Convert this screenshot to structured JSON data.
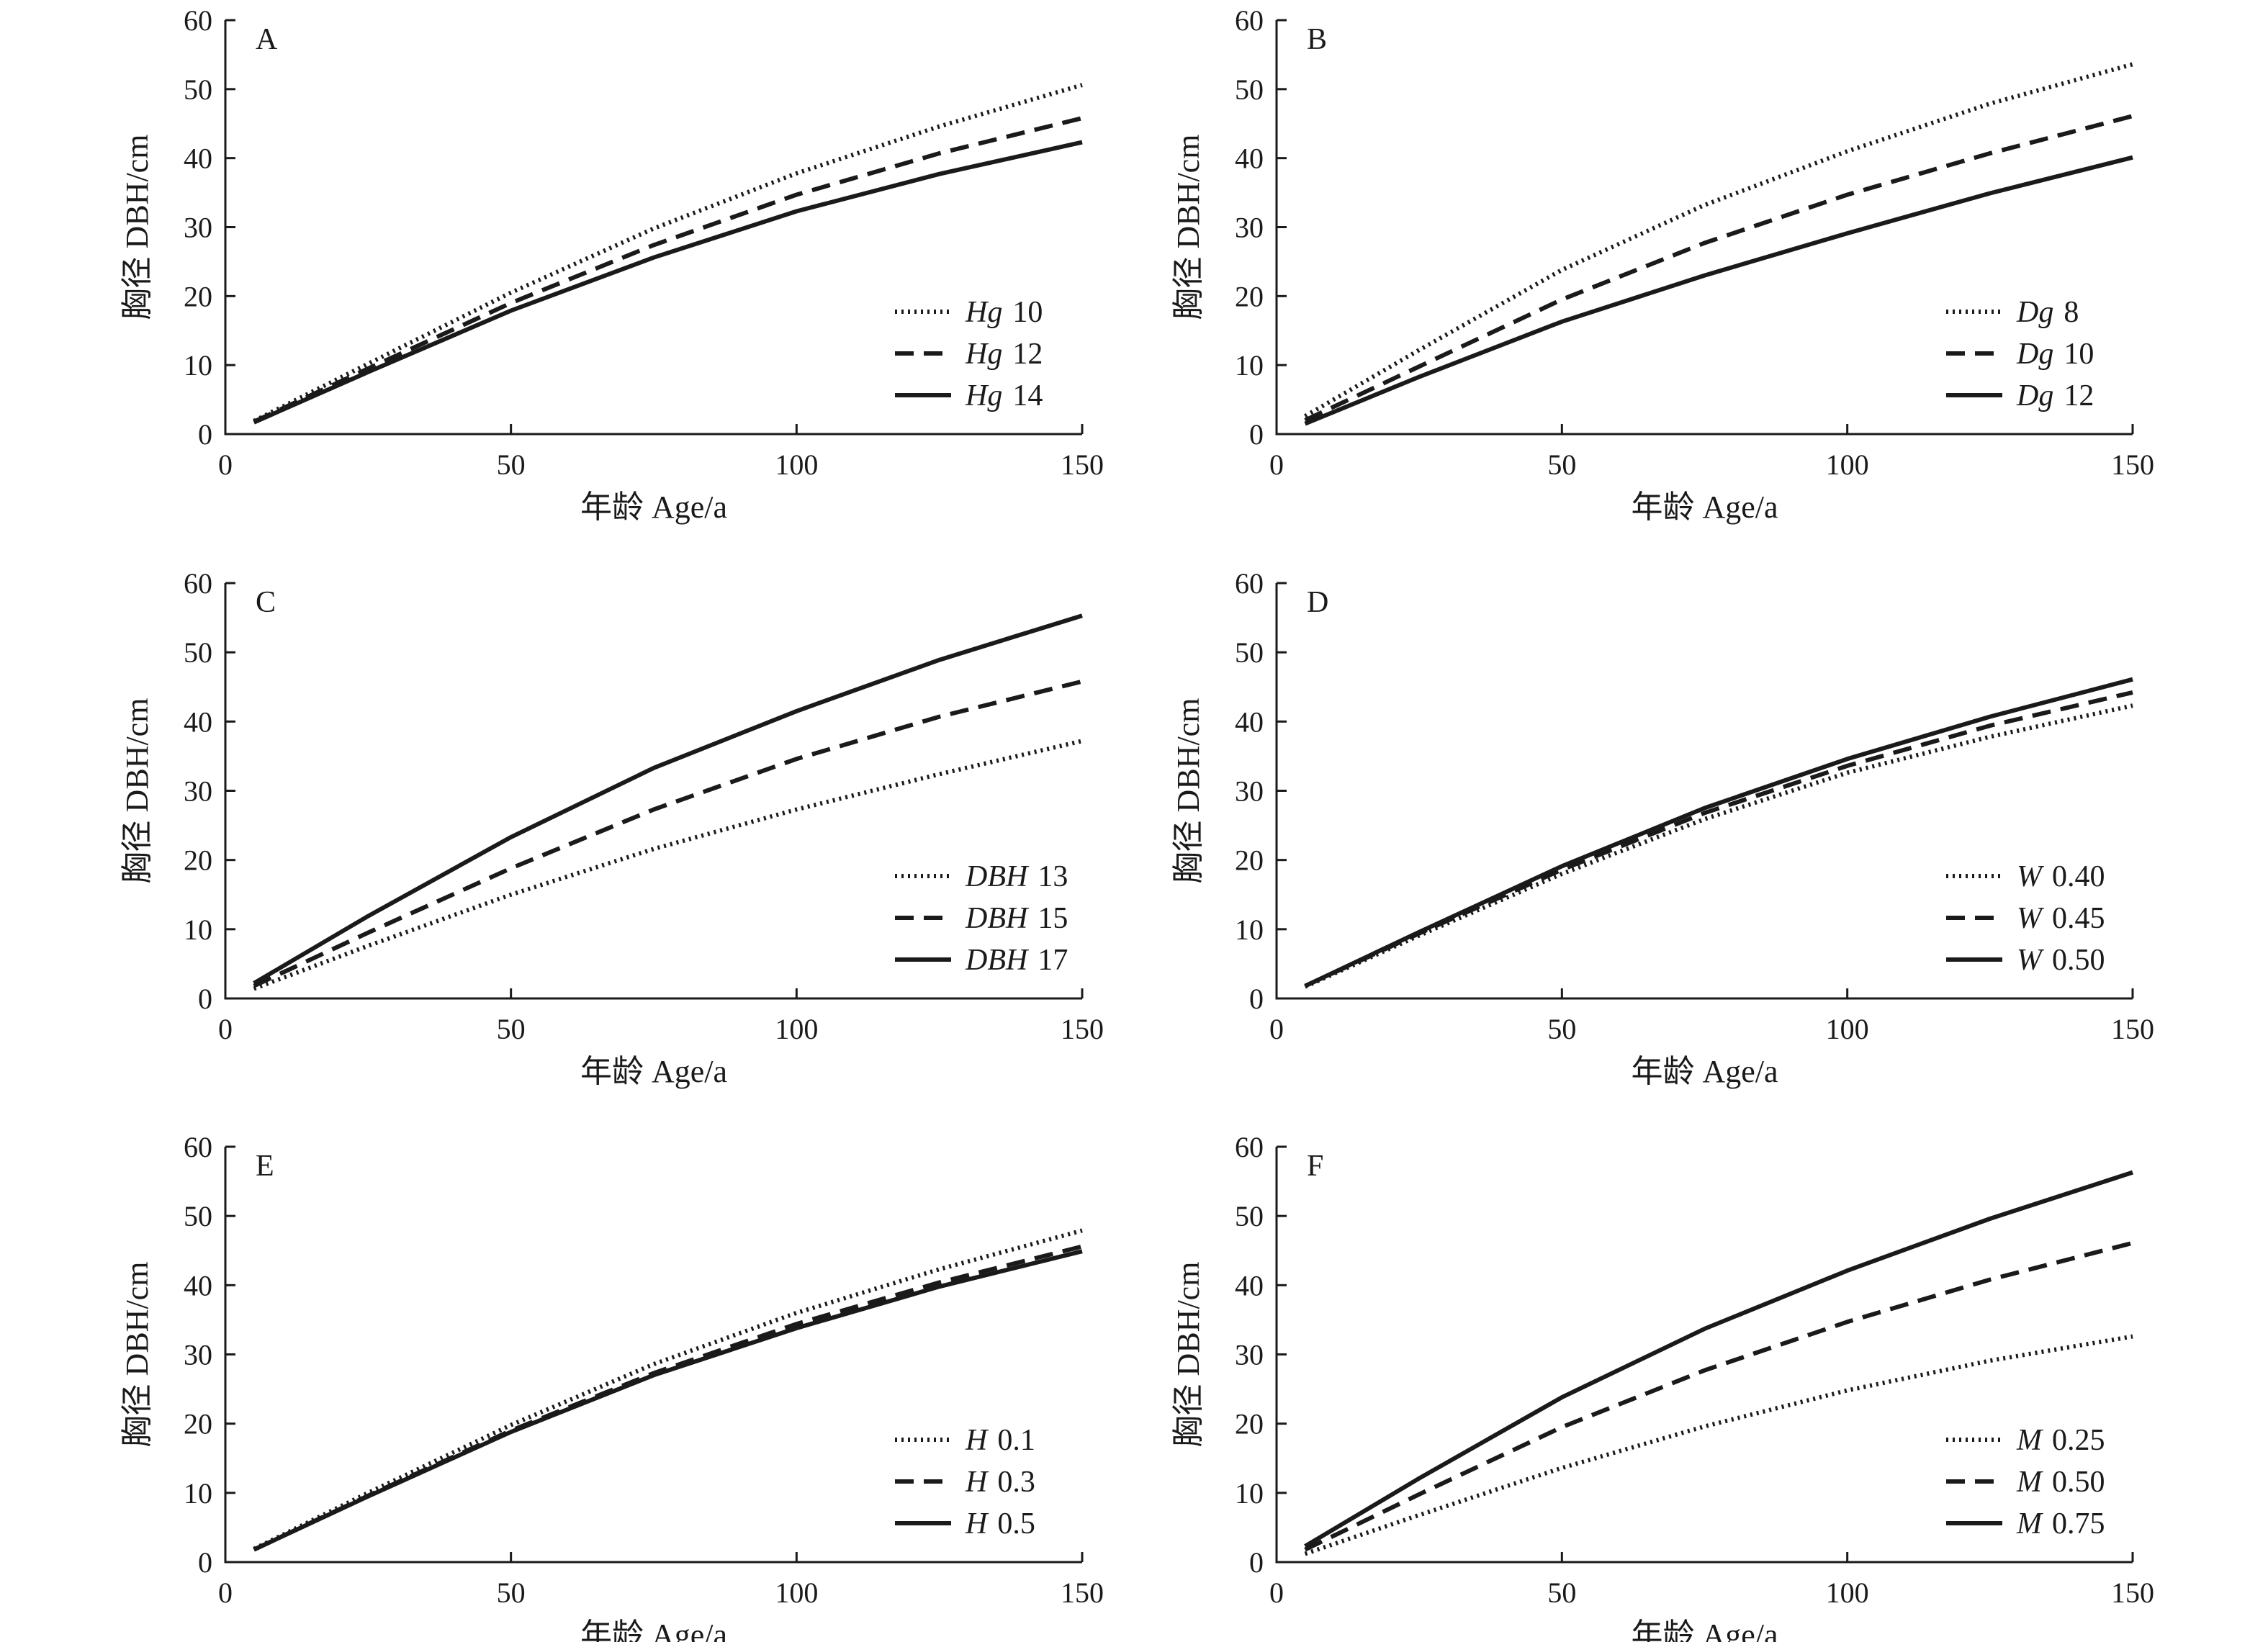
{
  "chart_data": [
    {
      "type": "line",
      "panel": "A",
      "xlabel": "年龄 Age/a",
      "ylabel": "胸径 DBH/cm",
      "xlim": [
        0,
        150
      ],
      "ylim": [
        0,
        60
      ],
      "xticks": [
        0,
        50,
        100,
        150
      ],
      "yticks": [
        0,
        10,
        20,
        30,
        40,
        50,
        60
      ],
      "x": [
        5,
        25,
        50,
        75,
        100,
        125,
        150
      ],
      "series": [
        {
          "var": "Hg",
          "value": "10",
          "style": "dotted",
          "values": [
            1.9,
            10.2,
            20.5,
            29.8,
            37.8,
            44.6,
            50.6
          ]
        },
        {
          "var": "Hg",
          "value": "12",
          "style": "dashed",
          "values": [
            1.8,
            9.5,
            19.0,
            27.4,
            34.7,
            40.7,
            45.8
          ]
        },
        {
          "var": "Hg",
          "value": "14",
          "style": "solid",
          "values": [
            1.7,
            9.0,
            17.9,
            25.6,
            32.3,
            37.7,
            42.3
          ]
        }
      ],
      "legend_position": "bottom-right"
    },
    {
      "type": "line",
      "panel": "B",
      "xlabel": "年龄 Age/a",
      "ylabel": "胸径 DBH/cm",
      "xlim": [
        0,
        150
      ],
      "ylim": [
        0,
        60
      ],
      "xticks": [
        0,
        50,
        100,
        150
      ],
      "yticks": [
        0,
        10,
        20,
        30,
        40,
        50,
        60
      ],
      "x": [
        5,
        25,
        50,
        75,
        100,
        125,
        150
      ],
      "series": [
        {
          "var": "Dg",
          "value": "8",
          "style": "dotted",
          "values": [
            2.6,
            12.2,
            23.8,
            33.2,
            41.0,
            47.9,
            53.6
          ]
        },
        {
          "var": "Dg",
          "value": "10",
          "style": "dashed",
          "values": [
            2.0,
            9.8,
            19.5,
            27.7,
            34.7,
            40.7,
            46.1
          ]
        },
        {
          "var": "Dg",
          "value": "12",
          "style": "solid",
          "values": [
            1.5,
            8.3,
            16.3,
            23.0,
            29.1,
            34.9,
            40.1
          ]
        }
      ],
      "legend_position": "bottom-right"
    },
    {
      "type": "line",
      "panel": "C",
      "xlabel": "年龄 Age/a",
      "ylabel": "胸径 DBH/cm",
      "xlim": [
        0,
        150
      ],
      "ylim": [
        0,
        60
      ],
      "xticks": [
        0,
        50,
        100,
        150
      ],
      "yticks": [
        0,
        10,
        20,
        30,
        40,
        50,
        60
      ],
      "x": [
        5,
        25,
        50,
        75,
        100,
        125,
        150
      ],
      "series": [
        {
          "var": "DBH",
          "value": "13",
          "style": "dotted",
          "values": [
            1.4,
            7.6,
            15.0,
            21.6,
            27.3,
            32.4,
            37.2
          ]
        },
        {
          "var": "DBH",
          "value": "15",
          "style": "dashed",
          "values": [
            1.8,
            9.5,
            18.8,
            27.3,
            34.6,
            40.7,
            45.8
          ]
        },
        {
          "var": "DBH",
          "value": "17",
          "style": "solid",
          "values": [
            2.2,
            11.9,
            23.3,
            33.3,
            41.5,
            48.9,
            55.3
          ]
        }
      ],
      "legend_position": "bottom-right"
    },
    {
      "type": "line",
      "panel": "D",
      "xlabel": "年龄 Age/a",
      "ylabel": "胸径 DBH/cm",
      "xlim": [
        0,
        150
      ],
      "ylim": [
        0,
        60
      ],
      "xticks": [
        0,
        50,
        100,
        150
      ],
      "yticks": [
        0,
        10,
        20,
        30,
        40,
        50,
        60
      ],
      "x": [
        5,
        25,
        50,
        75,
        100,
        125,
        150
      ],
      "series": [
        {
          "var": "W",
          "value": "0.40",
          "style": "dotted",
          "values": [
            1.7,
            9.1,
            18.0,
            25.9,
            32.6,
            37.8,
            42.3
          ]
        },
        {
          "var": "W",
          "value": "0.45",
          "style": "dashed",
          "values": [
            1.8,
            9.4,
            18.6,
            26.8,
            33.6,
            39.4,
            44.2
          ]
        },
        {
          "var": "W",
          "value": "0.50",
          "style": "solid",
          "values": [
            1.8,
            9.6,
            19.1,
            27.5,
            34.6,
            40.7,
            46.1
          ]
        }
      ],
      "legend_position": "bottom-right"
    },
    {
      "type": "line",
      "panel": "E",
      "xlabel": "年龄 Age/a",
      "ylabel": "胸径 DBH/cm",
      "xlim": [
        0,
        150
      ],
      "ylim": [
        0,
        60
      ],
      "xticks": [
        0,
        50,
        100,
        150
      ],
      "yticks": [
        0,
        10,
        20,
        30,
        40,
        50,
        60
      ],
      "x": [
        5,
        25,
        50,
        75,
        100,
        125,
        150
      ],
      "series": [
        {
          "var": "H",
          "value": "0.1",
          "style": "dotted",
          "values": [
            1.9,
            10.0,
            19.8,
            28.6,
            36.0,
            42.3,
            47.9
          ]
        },
        {
          "var": "H",
          "value": "0.3",
          "style": "dashed",
          "values": [
            1.8,
            9.6,
            19.0,
            27.3,
            34.4,
            40.4,
            45.6
          ]
        },
        {
          "var": "H",
          "value": "0.5",
          "style": "solid",
          "values": [
            1.8,
            9.5,
            18.8,
            27.0,
            33.8,
            39.8,
            44.9
          ]
        }
      ],
      "legend_position": "bottom-right"
    },
    {
      "type": "line",
      "panel": "F",
      "xlabel": "年龄 Age/a",
      "ylabel": "胸径 DBH/cm",
      "xlim": [
        0,
        150
      ],
      "ylim": [
        0,
        60
      ],
      "xticks": [
        0,
        50,
        100,
        150
      ],
      "yticks": [
        0,
        10,
        20,
        30,
        40,
        50,
        60
      ],
      "x": [
        5,
        25,
        50,
        75,
        100,
        125,
        150
      ],
      "series": [
        {
          "var": "M",
          "value": "0.25",
          "style": "dotted",
          "values": [
            1.2,
            6.8,
            13.6,
            19.6,
            24.8,
            29.1,
            32.6
          ]
        },
        {
          "var": "M",
          "value": "0.50",
          "style": "dashed",
          "values": [
            1.8,
            9.8,
            19.5,
            27.7,
            34.7,
            40.8,
            46.1
          ]
        },
        {
          "var": "M",
          "value": "0.75",
          "style": "solid",
          "values": [
            2.3,
            12.1,
            23.8,
            33.7,
            42.1,
            49.6,
            56.3
          ]
        }
      ],
      "legend_position": "bottom-right"
    }
  ]
}
